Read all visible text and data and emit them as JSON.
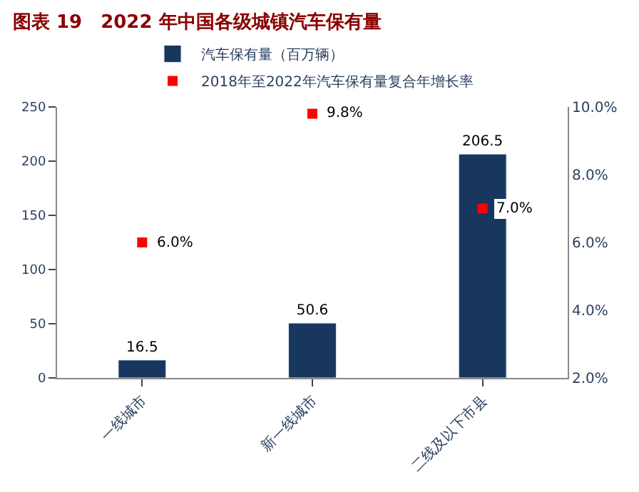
{
  "chart_data": {
    "type": "bar",
    "title": "图表 19　2022 年中国各级城镇汽车保有量",
    "categories": [
      "一线城市",
      "新一线城市",
      "二线及以下市县"
    ],
    "series": [
      {
        "name": "汽车保有量（百万辆）",
        "color": "#17375e",
        "values": [
          16.5,
          50.6,
          206.5
        ]
      },
      {
        "name": "2018年至2022年汽车保有量复合年增长率",
        "type": "scatter",
        "axis": "y2",
        "color": "#ff0000",
        "values": [
          6.0,
          9.8,
          7.0
        ],
        "value_labels": [
          "6.0%",
          "9.8%",
          "7.0%"
        ]
      }
    ],
    "data_labels": true,
    "marker": "square",
    "ylim": [
      0,
      250
    ],
    "yticks": [
      0,
      50,
      100,
      150,
      200,
      250
    ],
    "y2lim": [
      2.0,
      10.0
    ],
    "y2ticks": [
      {
        "value": 2.0,
        "label": "2.0%"
      },
      {
        "value": 4.0,
        "label": "4.0%"
      },
      {
        "value": 6.0,
        "label": "6.0%"
      },
      {
        "value": 8.0,
        "label": "8.0%"
      },
      {
        "value": 10.0,
        "label": "10.0%"
      }
    ],
    "legend": "top"
  }
}
